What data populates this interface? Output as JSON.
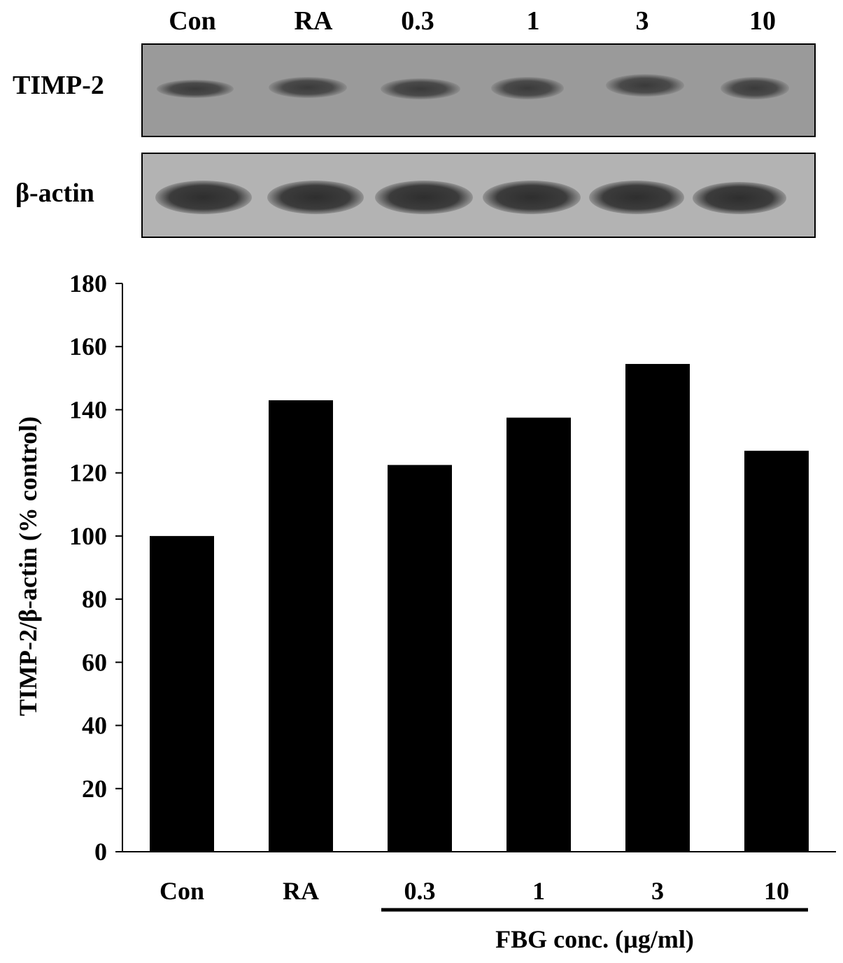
{
  "blot": {
    "lanes": [
      "Con",
      "RA",
      "0.3",
      "1",
      "3",
      "10"
    ],
    "rows": [
      {
        "label": "TIMP-2"
      },
      {
        "label": "β-actin"
      }
    ]
  },
  "chart_data": {
    "type": "bar",
    "categories": [
      "Con",
      "RA",
      "0.3",
      "1",
      "3",
      "10"
    ],
    "values": [
      100,
      143,
      122.5,
      137.5,
      154.5,
      127
    ],
    "ylabel": "TIMP-2/β-actin (% control)",
    "xlabel": "",
    "group_label": "FBG conc. (µg/ml)",
    "group_categories": [
      "0.3",
      "1",
      "3",
      "10"
    ],
    "ylim": [
      0,
      180
    ],
    "yticks": [
      0,
      20,
      40,
      60,
      80,
      100,
      120,
      140,
      160,
      180
    ],
    "bar_color": "#000000",
    "grid": false
  }
}
